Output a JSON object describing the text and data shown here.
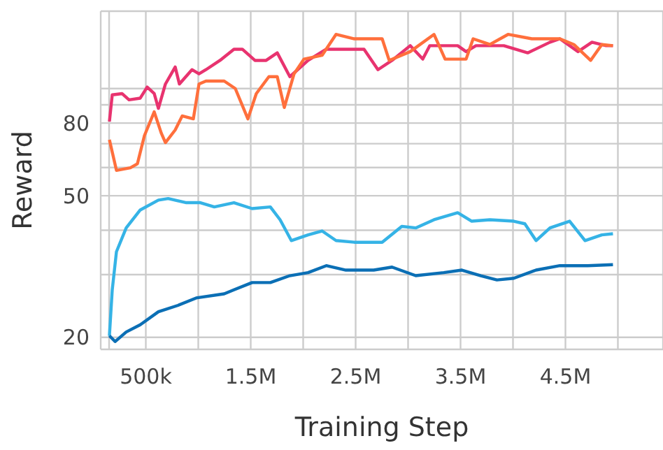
{
  "chart_data": {
    "type": "line",
    "xlabel": "Training Step",
    "ylabel": "Reward",
    "log": "y",
    "grid": true,
    "marker": "none",
    "line_style": "solid",
    "xlim": [
      70000,
      5430000
    ],
    "xticks": [
      {
        "value": 150000,
        "label": null
      },
      {
        "value": 500000,
        "label": "500k"
      },
      {
        "value": 1000000,
        "label": null
      },
      {
        "value": 1500000,
        "label": "1.5M"
      },
      {
        "value": 2000000,
        "label": null
      },
      {
        "value": 2500000,
        "label": "2.5M"
      },
      {
        "value": 3000000,
        "label": null
      },
      {
        "value": 3500000,
        "label": "3.5M"
      },
      {
        "value": 4000000,
        "label": null
      },
      {
        "value": 4500000,
        "label": "4.5M"
      },
      {
        "value": 5000000,
        "label": null
      }
    ],
    "ylim": [
      18.5,
      165
    ],
    "yticks": [
      20,
      {
        "value": 30,
        "label": null
      },
      {
        "value": 40,
        "label": null
      },
      50,
      {
        "value": 60,
        "label": null
      },
      {
        "value": 70,
        "label": null
      },
      80,
      {
        "value": 90,
        "label": null
      },
      {
        "value": 100,
        "label": null
      }
    ],
    "series": [
      {
        "color": "#e8336f",
        "x": [
          153000,
          180000,
          273000,
          340000,
          447000,
          513000,
          580000,
          620000,
          687000,
          780000,
          820000,
          940000,
          1007000,
          1073000,
          1207000,
          1340000,
          1420000,
          1540000,
          1647000,
          1753000,
          1873000,
          2047000,
          2220000,
          2407000,
          2580000,
          2713000,
          2847000,
          3020000,
          3140000,
          3207000,
          3340000,
          3473000,
          3553000,
          3647000,
          3913000,
          4140000,
          4353000,
          4447000,
          4620000,
          4753000,
          4887000,
          4953000
        ],
        "values": [
          80.8,
          96,
          96.8,
          93,
          94,
          101,
          96.8,
          88,
          103,
          115,
          103,
          113,
          110,
          113,
          120,
          129,
          129,
          120,
          120,
          126,
          108,
          120,
          129,
          129,
          129,
          113,
          120,
          132,
          121,
          132,
          132,
          132,
          127,
          132,
          132,
          126,
          135,
          138,
          127,
          135,
          132,
          132
        ]
      },
      {
        "color": "#ff6f3c",
        "x": [
          153000,
          220000,
          353000,
          420000,
          487000,
          580000,
          647000,
          687000,
          780000,
          847000,
          953000,
          1007000,
          1073000,
          1247000,
          1353000,
          1473000,
          1553000,
          1673000,
          1753000,
          1820000,
          1913000,
          2007000,
          2180000,
          2313000,
          2487000,
          2753000,
          2820000,
          3020000,
          3247000,
          3353000,
          3553000,
          3620000,
          3780000,
          3953000,
          4180000,
          4447000,
          4580000,
          4740000,
          4847000,
          4953000
        ],
        "values": [
          71.8,
          58.9,
          59.9,
          61.5,
          73.8,
          86,
          75,
          70.5,
          76.5,
          83.8,
          82.2,
          103,
          105,
          105,
          100,
          82.2,
          96.8,
          108,
          108,
          88.5,
          110,
          121,
          124,
          142,
          138,
          138,
          120,
          127,
          142,
          121,
          121,
          138,
          133,
          142,
          138,
          138,
          133,
          120,
          133,
          132
        ]
      },
      {
        "color": "#35b3e6",
        "x": [
          153000,
          180000,
          220000,
          313000,
          447000,
          620000,
          713000,
          887000,
          1020000,
          1153000,
          1340000,
          1513000,
          1687000,
          1780000,
          1887000,
          2047000,
          2180000,
          2313000,
          2487000,
          2753000,
          2940000,
          3073000,
          3247000,
          3473000,
          3607000,
          3780000,
          4007000,
          4113000,
          4220000,
          4353000,
          4540000,
          4687000,
          4847000,
          4953000
        ],
        "values": [
          20.2,
          27.2,
          34.8,
          40.6,
          45.6,
          48.6,
          49.1,
          47.8,
          47.8,
          46.5,
          47.8,
          46,
          46.5,
          42.8,
          37.4,
          38.8,
          39.8,
          37.4,
          37,
          37,
          41,
          40.6,
          42.8,
          44.8,
          42.4,
          42.8,
          42.4,
          41.7,
          37.4,
          40.6,
          42.4,
          37.4,
          38.8,
          39.1
        ]
      },
      {
        "color": "#0b6fb5",
        "x": [
          153000,
          207000,
          313000,
          447000,
          620000,
          807000,
          980000,
          1247000,
          1340000,
          1513000,
          1687000,
          1873000,
          2047000,
          2220000,
          2407000,
          2673000,
          2847000,
          3073000,
          3340000,
          3513000,
          3693000,
          3847000,
          4007000,
          4220000,
          4447000,
          4713000,
          4953000
        ],
        "values": [
          20.2,
          19.46,
          20.7,
          21.7,
          23.6,
          24.6,
          25.8,
          26.5,
          27.2,
          28.5,
          28.5,
          29.8,
          30.4,
          31.8,
          30.9,
          30.9,
          31.5,
          29.8,
          30.4,
          30.9,
          29.8,
          29,
          29.3,
          30.9,
          31.8,
          31.8,
          32
        ]
      }
    ]
  }
}
